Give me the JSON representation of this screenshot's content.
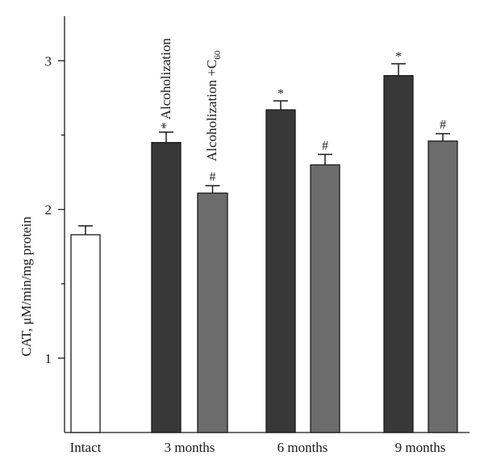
{
  "chart_data": {
    "type": "bar",
    "ylabel": "CAT, μM/min/mg protein",
    "ylim": [
      0.5,
      3.3
    ],
    "yticks": [
      1,
      2,
      3
    ],
    "yticks_minor": [
      1.5,
      2.5
    ],
    "categories": [
      "Intact",
      "3 months",
      "6 months",
      "9 months"
    ],
    "bars": [
      {
        "category": "Intact",
        "series": "Intact",
        "value": 1.83,
        "error": 0.06,
        "mark": ""
      },
      {
        "category": "3 months",
        "series": "Alcoholization",
        "value": 2.45,
        "error": 0.07,
        "mark": "*"
      },
      {
        "category": "3 months",
        "series": "Alcoholization +C60",
        "value": 2.11,
        "error": 0.05,
        "mark": "#"
      },
      {
        "category": "6 months",
        "series": "Alcoholization",
        "value": 2.67,
        "error": 0.06,
        "mark": "*"
      },
      {
        "category": "6 months",
        "series": "Alcoholization +C60",
        "value": 2.3,
        "error": 0.07,
        "mark": "#"
      },
      {
        "category": "9 months",
        "series": "Alcoholization",
        "value": 2.9,
        "error": 0.08,
        "mark": "*"
      },
      {
        "category": "9 months",
        "series": "Alcoholization +C60",
        "value": 2.46,
        "error": 0.05,
        "mark": "#"
      }
    ],
    "series_labels": {
      "alcoholization": "Alcoholization",
      "alcoholization_c60_main": "Alcoholization +C",
      "alcoholization_c60_sub": "60"
    },
    "colors": {
      "Intact": "#ffffff",
      "Alcoholization": "#383838",
      "Alcoholization +C60": "#6c6c6c"
    },
    "grid": false
  }
}
